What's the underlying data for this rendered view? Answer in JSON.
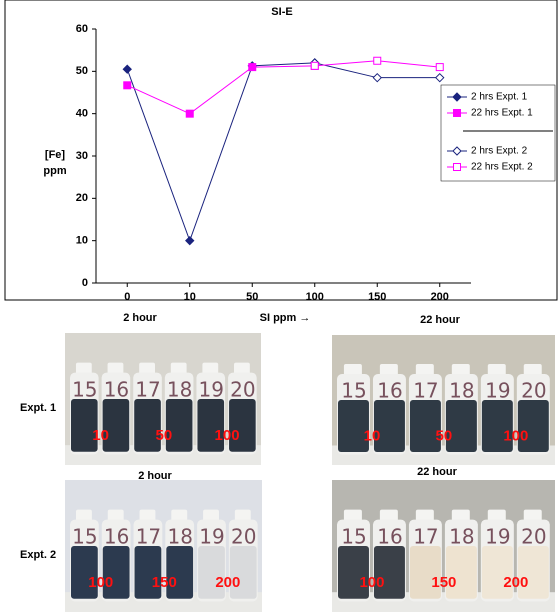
{
  "chart_data": {
    "type": "line",
    "title": "SI-E",
    "y_label": "[Fe]",
    "y_label_unit": "ppm",
    "x_label": "SI ppm →",
    "categories": [
      "0",
      "10",
      "50",
      "100",
      "150",
      "200"
    ],
    "ylim": [
      0,
      60
    ],
    "yticks": [
      0,
      10,
      20,
      30,
      40,
      50,
      60
    ],
    "grid": false,
    "legend": "right",
    "series": [
      {
        "name": "2 hrs Expt. 1",
        "color": "#1a237e",
        "marker": "diamond",
        "filled": true,
        "values": [
          50.5,
          10,
          51.3,
          52,
          null,
          null
        ]
      },
      {
        "name": "22 hrs Expt. 1",
        "color": "#ff00ff",
        "marker": "square",
        "filled": true,
        "values": [
          46.7,
          40,
          51,
          51.3,
          null,
          null
        ]
      },
      {
        "name": "2 hrs Expt. 2",
        "color": "#1a237e",
        "marker": "diamond",
        "filled": false,
        "values": [
          null,
          null,
          null,
          52,
          48.5,
          48.5
        ]
      },
      {
        "name": "22 hrs Expt. 2",
        "color": "#ff00ff",
        "marker": "square",
        "filled": false,
        "values": [
          null,
          null,
          null,
          51.3,
          52.5,
          51
        ]
      }
    ]
  },
  "rows": [
    "Expt. 1",
    "Expt. 2"
  ],
  "photos": [
    {
      "caption": "2 hour",
      "bottles": [
        "15",
        "16",
        "17",
        "18",
        "19",
        "20"
      ],
      "labels": [
        "10",
        "50",
        "100"
      ]
    },
    {
      "caption": "22 hour",
      "bottles": [
        "15",
        "16",
        "17",
        "18",
        "19",
        "20"
      ],
      "labels": [
        "10",
        "50",
        "100"
      ]
    },
    {
      "caption": "2 hour",
      "bottles": [
        "15",
        "16",
        "17",
        "18",
        "19",
        "20"
      ],
      "labels": [
        "100",
        "150",
        "200"
      ]
    },
    {
      "caption": "22 hour",
      "bottles": [
        "15",
        "16",
        "17",
        "18",
        "19",
        "20"
      ],
      "labels": [
        "100",
        "150",
        "200"
      ]
    }
  ]
}
